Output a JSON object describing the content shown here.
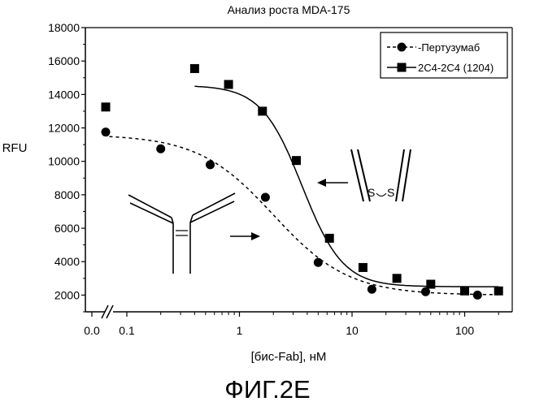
{
  "chart_data": {
    "type": "scatter",
    "title": "Анализ роста MDA-175",
    "xlabel": "[бис-Fab], нМ",
    "ylabel": "RFU",
    "x_scale": "log",
    "x_break": true,
    "xlim": [
      0.07,
      280
    ],
    "ylim": [
      1000,
      18000
    ],
    "x_ticks": [
      {
        "value": 0.0,
        "label": "0.0"
      },
      {
        "value": 0.1,
        "label": "0.1"
      },
      {
        "value": 1,
        "label": "1"
      },
      {
        "value": 10,
        "label": "10"
      },
      {
        "value": 100,
        "label": "100"
      }
    ],
    "y_ticks": [
      2000,
      4000,
      6000,
      8000,
      10000,
      12000,
      14000,
      16000,
      18000
    ],
    "legend_position": "top-right",
    "series": [
      {
        "name": "Пертузумаб",
        "marker": "circle",
        "line": "dashed",
        "color": "#000000",
        "zero_point": 11750,
        "points": [
          {
            "x": 0.2,
            "y": 10750
          },
          {
            "x": 0.55,
            "y": 9800
          },
          {
            "x": 1.7,
            "y": 7850
          },
          {
            "x": 5,
            "y": 3950
          },
          {
            "x": 15,
            "y": 2350
          },
          {
            "x": 45,
            "y": 2200
          },
          {
            "x": 130,
            "y": 2000
          }
        ],
        "fit": {
          "top": 11600,
          "bottom": 2000,
          "ec50": 2.0,
          "hill": 1.3,
          "x_from": 0.07,
          "x_to": 200
        }
      },
      {
        "name": "2C4-2C4 (1204)",
        "marker": "square",
        "line": "solid",
        "color": "#000000",
        "zero_point": 13250,
        "points": [
          {
            "x": 0.4,
            "y": 15550
          },
          {
            "x": 0.8,
            "y": 14600
          },
          {
            "x": 1.6,
            "y": 13000
          },
          {
            "x": 3.2,
            "y": 10050
          },
          {
            "x": 6.3,
            "y": 5400
          },
          {
            "x": 12.5,
            "y": 3650
          },
          {
            "x": 25,
            "y": 3000
          },
          {
            "x": 50,
            "y": 2650
          },
          {
            "x": 100,
            "y": 2250
          },
          {
            "x": 200,
            "y": 2250
          }
        ],
        "fit": {
          "top": 14550,
          "bottom": 2500,
          "ec50": 3.6,
          "hill": 2.4,
          "x_from": 0.4,
          "x_to": 200
        }
      }
    ],
    "annotations": [
      {
        "kind": "molecule-sketch",
        "text": "S  S"
      }
    ]
  },
  "figure_label": "ФИГ.2E"
}
